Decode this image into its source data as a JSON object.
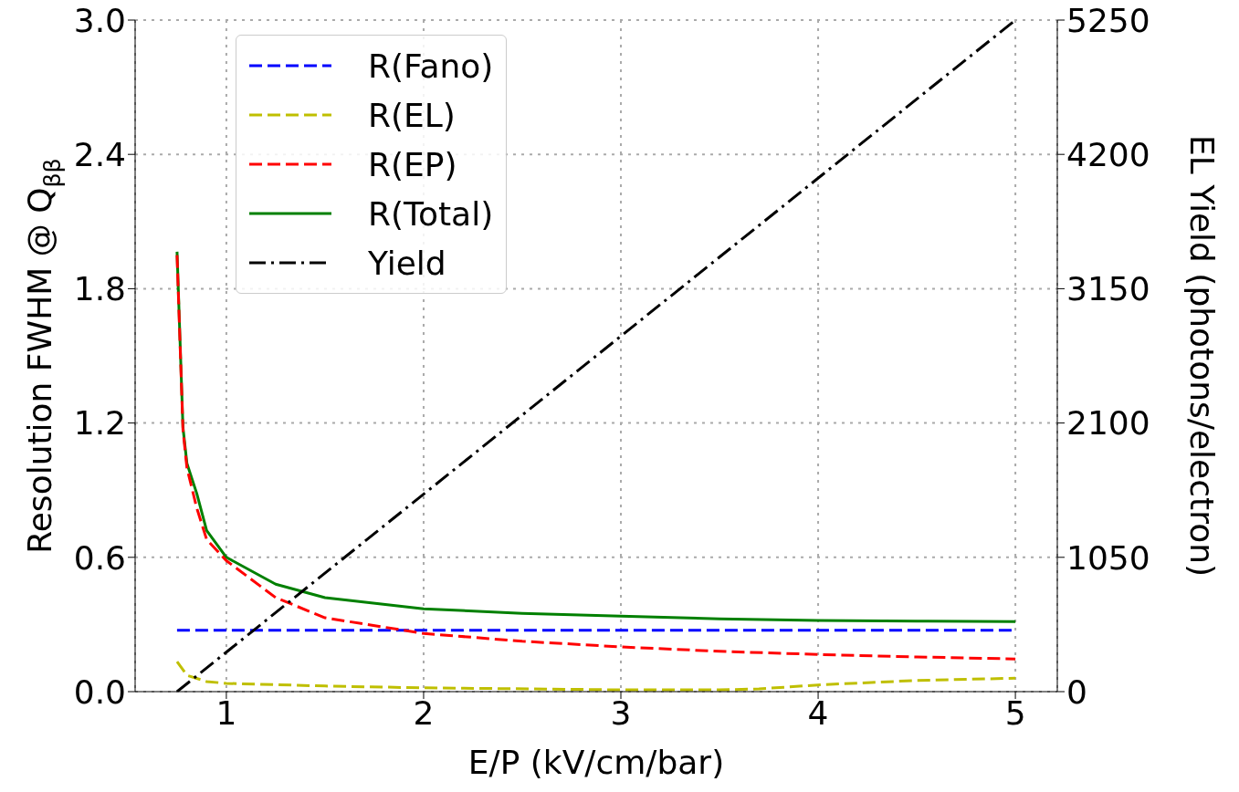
{
  "chart_data": {
    "type": "line",
    "xlabel": "E/P (kV/cm/bar)",
    "ylabel": "Resolution FWHM @ Q$_{ββ}$",
    "y2label": "EL Yield (photons/electron)",
    "xlim": [
      0.5375,
      5.2125
    ],
    "xticks": [
      1,
      2,
      3,
      4,
      5
    ],
    "ylim": [
      0,
      3.0
    ],
    "yticks": [
      {
        "value": 0,
        "label": "0.0"
      },
      {
        "value": 0.6,
        "label": "0.6"
      },
      {
        "value": 1.2,
        "label": "1.2"
      },
      {
        "value": 1.8,
        "label": "1.8"
      },
      {
        "value": 2.4,
        "label": "2.4"
      },
      {
        "value": 3.0,
        "label": "3.0"
      }
    ],
    "y2lim": [
      0,
      5250
    ],
    "y2ticks": [
      0,
      1050,
      2100,
      3150,
      4200,
      5250
    ],
    "grid": true,
    "legend": "top left",
    "series": [
      {
        "name": "R(Fano)",
        "color": "#0000ff",
        "line_style": "dashed",
        "x": [
          0.75,
          5
        ],
        "values": [
          0.274,
          0.274
        ]
      },
      {
        "name": "R(EL)",
        "color": "#bfbf00",
        "line_style": "dashed",
        "x": [
          0.75,
          0.8,
          0.9,
          1.0,
          1.5,
          2,
          3,
          3.5,
          3.7,
          4,
          4.5,
          5
        ],
        "values": [
          0.134,
          0.073,
          0.045,
          0.037,
          0.025,
          0.017,
          0.008,
          0.008,
          0.012,
          0.03,
          0.05,
          0.06
        ]
      },
      {
        "name": "R(EP)",
        "color": "#ff0000",
        "line_style": "dashed",
        "x": [
          0.75,
          0.78,
          0.8,
          0.85,
          0.9,
          1.0,
          1.25,
          1.5,
          2,
          2.5,
          3,
          3.5,
          4,
          4.5,
          5
        ],
        "values": [
          1.95,
          1.17,
          1.0,
          0.82,
          0.68,
          0.585,
          0.42,
          0.33,
          0.26,
          0.225,
          0.2,
          0.18,
          0.166,
          0.155,
          0.146
        ]
      },
      {
        "name": "R(Total)",
        "color": "#008000",
        "line_style": "solid",
        "x": [
          0.75,
          0.78,
          0.8,
          0.85,
          0.9,
          1.0,
          1.25,
          1.5,
          2,
          2.5,
          3,
          3.5,
          4,
          4.5,
          5
        ],
        "values": [
          1.965,
          1.18,
          1.02,
          0.885,
          0.72,
          0.6,
          0.48,
          0.42,
          0.37,
          0.35,
          0.337,
          0.325,
          0.318,
          0.315,
          0.313
        ]
      },
      {
        "name": "Yield",
        "color": "#000000",
        "line_style": "dashdot",
        "axis": "y2",
        "x": [
          0.75,
          5
        ],
        "values": [
          0,
          5250
        ]
      }
    ]
  }
}
